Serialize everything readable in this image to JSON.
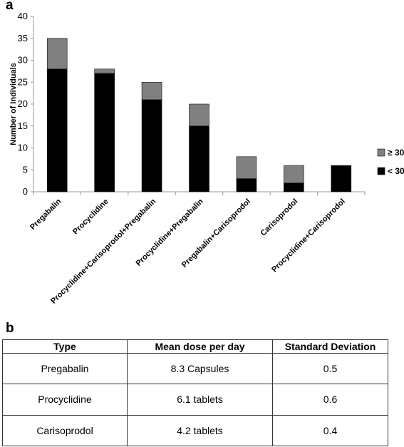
{
  "panels": {
    "a": "a",
    "b": "b"
  },
  "chart_data": {
    "type": "bar",
    "stacked": true,
    "title": "",
    "xlabel": "",
    "ylabel": "Number of Individuals",
    "ylim": [
      0,
      40
    ],
    "yticks": [
      0,
      5,
      10,
      15,
      20,
      25,
      30,
      35,
      40
    ],
    "grid": false,
    "legend_position": "right",
    "categories": [
      "Pregabalin",
      "Procyclidine",
      "Procyclidine+Carisoprodol+Pregabalin",
      "Procyclidine+Pregabalin",
      "Pregabalin+Carisoprodol",
      "Carisoprodol",
      "Procyclidine+Carisoprodol"
    ],
    "series": [
      {
        "name": "< 30",
        "color": "#000000",
        "values": [
          28,
          27,
          21,
          15,
          3,
          2,
          6
        ]
      },
      {
        "name": "≥ 30",
        "color": "#808080",
        "values": [
          7,
          1,
          4,
          5,
          5,
          4,
          0
        ]
      }
    ],
    "legend_order": [
      "≥ 30",
      "< 30"
    ]
  },
  "table": {
    "headers": [
      "Type",
      "Mean dose per day",
      "Standard Deviation"
    ],
    "rows": [
      [
        "Pregabalin",
        "8.3 Capsules",
        "0.5"
      ],
      [
        "Procyclidine",
        "6.1 tablets",
        "0.6"
      ],
      [
        "Carisoprodol",
        "4.2 tablets",
        "0.4"
      ]
    ]
  }
}
